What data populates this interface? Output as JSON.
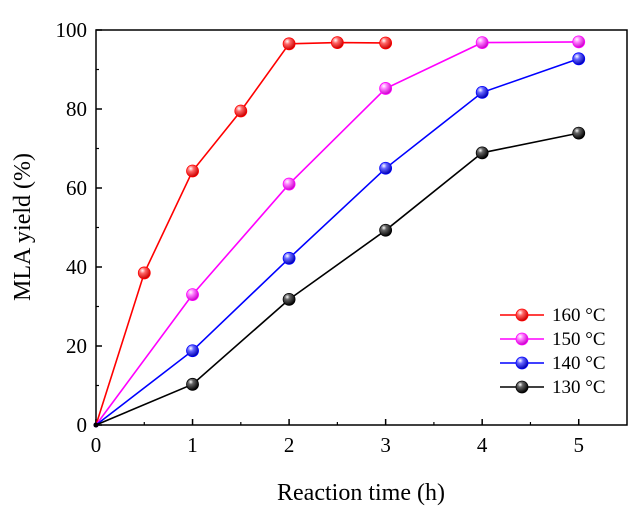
{
  "chart_data": {
    "type": "line",
    "title": "",
    "xlabel": "Reaction time (h)",
    "ylabel": "MLA yield (%)",
    "xlim": [
      0,
      5.5
    ],
    "ylim": [
      0,
      100
    ],
    "xticks": [
      "0",
      "1",
      "2",
      "3",
      "4",
      "5"
    ],
    "yticks": [
      "0",
      "20",
      "40",
      "60",
      "80",
      "100"
    ],
    "grid": false,
    "legend_position": "bottom-right",
    "series": [
      {
        "name": "160 °C",
        "color": "#ff0000",
        "x": [
          0,
          0.5,
          1,
          1.5,
          2,
          2.5,
          3
        ],
        "y": [
          0,
          38.5,
          64.3,
          79.5,
          96.5,
          96.8,
          96.7
        ]
      },
      {
        "name": "150 °C",
        "color": "#ff00ff",
        "x": [
          0,
          1,
          2,
          3,
          4,
          5
        ],
        "y": [
          0,
          33,
          61,
          85.2,
          96.8,
          97
        ]
      },
      {
        "name": "140 °C",
        "color": "#0000ff",
        "x": [
          0,
          1,
          2,
          3,
          4,
          5
        ],
        "y": [
          0,
          18.8,
          42.2,
          65,
          84.2,
          92.7
        ]
      },
      {
        "name": "130 °C",
        "color": "#000000",
        "x": [
          0,
          1,
          2,
          3,
          4,
          5
        ],
        "y": [
          0,
          10.3,
          31.8,
          49.3,
          68.9,
          73.9
        ]
      }
    ]
  }
}
